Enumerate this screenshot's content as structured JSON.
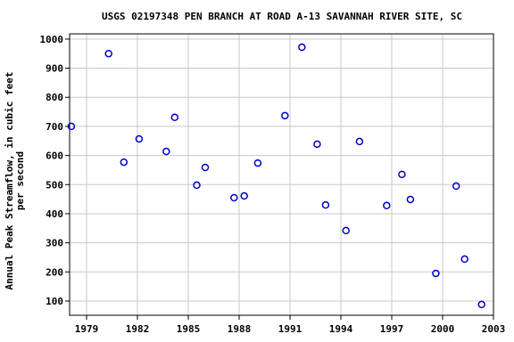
{
  "chart_data": {
    "type": "scatter",
    "title": "USGS 02197348 PEN BRANCH AT ROAD A-13 SAVANNAH RIVER SITE, SC",
    "y_label": "Annual Peak Streamflow, in cubic feet per second",
    "x": [
      1978.1,
      1980.3,
      1981.2,
      1982.1,
      1983.7,
      1984.2,
      1985.5,
      1986.0,
      1987.7,
      1988.3,
      1989.1,
      1990.7,
      1991.7,
      1992.6,
      1993.1,
      1994.3,
      1995.1,
      1996.7,
      1997.6,
      1998.1,
      1999.6,
      2000.8,
      2001.3,
      2002.3
    ],
    "values": [
      700,
      950,
      577,
      657,
      614,
      731,
      498,
      559,
      455,
      461,
      574,
      737,
      972,
      639,
      430,
      342,
      648,
      428,
      535,
      449,
      195,
      495,
      244,
      88
    ],
    "color": "#0000cc",
    "xlim": [
      1978,
      2003
    ],
    "ylim": [
      51,
      1018
    ],
    "xticks": [
      1979,
      1982,
      1985,
      1988,
      1991,
      1994,
      1997,
      2000,
      2003
    ],
    "yticks": [
      100,
      200,
      300,
      400,
      500,
      600,
      700,
      800,
      900,
      1000
    ],
    "grid": true
  }
}
